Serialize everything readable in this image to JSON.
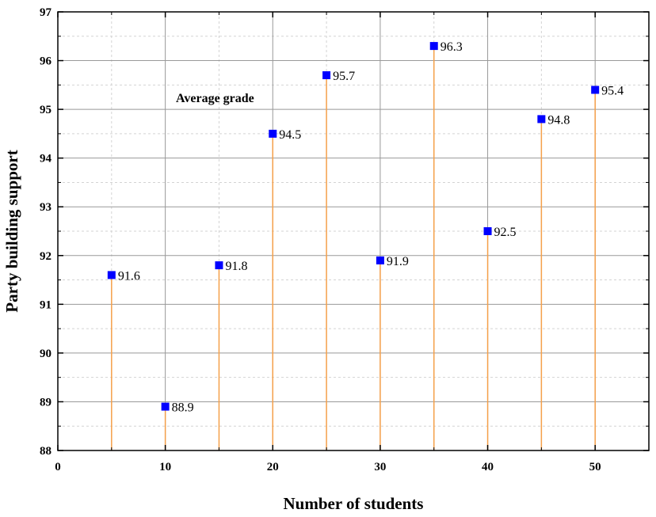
{
  "chart_data": {
    "type": "scatter",
    "xlabel": "Number of students",
    "ylabel": "Party building support",
    "annotation": "Average grade",
    "xlim": [
      0,
      55
    ],
    "ylim": [
      88,
      97
    ],
    "xticks": [
      0,
      10,
      20,
      30,
      40,
      50
    ],
    "yticks": [
      88,
      89,
      90,
      91,
      92,
      93,
      94,
      95,
      96,
      97
    ],
    "grid": true,
    "drop_lines": true,
    "colors": {
      "marker": "#0000ff",
      "drop_line": "#f5a04a",
      "grid_major": "#999999",
      "grid_minor": "#d3d3d3"
    },
    "points": [
      {
        "x": 5,
        "y": 91.6,
        "label": "91.6"
      },
      {
        "x": 10,
        "y": 88.9,
        "label": "88.9"
      },
      {
        "x": 15,
        "y": 91.8,
        "label": "91.8"
      },
      {
        "x": 20,
        "y": 94.5,
        "label": "94.5"
      },
      {
        "x": 25,
        "y": 95.7,
        "label": "95.7"
      },
      {
        "x": 30,
        "y": 91.9,
        "label": "91.9"
      },
      {
        "x": 35,
        "y": 96.3,
        "label": "96.3"
      },
      {
        "x": 40,
        "y": 92.5,
        "label": "92.5"
      },
      {
        "x": 45,
        "y": 94.8,
        "label": "94.8"
      },
      {
        "x": 50,
        "y": 95.4,
        "label": "95.4"
      }
    ]
  }
}
